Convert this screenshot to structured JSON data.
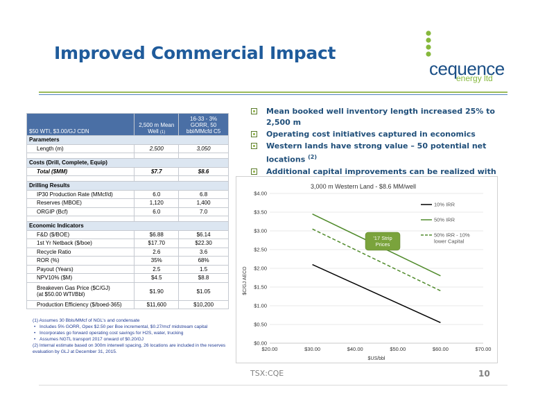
{
  "slide": {
    "title": "Improved Commercial Impact",
    "logo_text": "cequence",
    "logo_sub": "energy ltd",
    "ticker": "TSX:CQE",
    "page_number": "10"
  },
  "table": {
    "header": {
      "label": "$50 WTI, $3.00/GJ CDN",
      "col1": "2,500 m Mean Well",
      "col1_note": "(1)",
      "col2": "16-33 - 3% GORR, 50 bbl/MMcfd C5"
    },
    "sections": {
      "parameters": "Parameters",
      "costs": "Costs (Drill, Complete, Equip)",
      "drilling": "Drilling Results",
      "economic": "Economic Indicators"
    },
    "rows": {
      "length": [
        "Length (m)",
        "2,500",
        "3,050"
      ],
      "total": [
        "Total ($MM)",
        "$7.7",
        "$8.6"
      ],
      "ip30": [
        "IP30 Production Rate (MMcf/d)",
        "6.0",
        "6.8"
      ],
      "reserves": [
        "Reserves (MBOE)",
        "1,120",
        "1,400"
      ],
      "ogip": [
        "ORGIP (Bcf)",
        "6.0",
        "7.0"
      ],
      "fd": [
        "F&D ($/BOE)",
        "$6.88",
        "$6.14"
      ],
      "netback": [
        "1st Yr Netback ($/boe)",
        "$17.70",
        "$22.30"
      ],
      "recycle": [
        "Recycle Ratio",
        "2.6",
        "3.6"
      ],
      "ror": [
        "ROR (%)",
        "35%",
        "68%"
      ],
      "payout": [
        "Payout (Years)",
        "2.5",
        "1.5"
      ],
      "npv": [
        "NPV10% ($M)",
        "$4.5",
        "$8.8"
      ],
      "breakeven_l1": "Breakeven Gas Price ($C/GJ)",
      "breakeven_l2": "(at $50.00 WTI/Bbl)",
      "breakeven_v1": "$1.90",
      "breakeven_v2": "$1.05",
      "efficiency": [
        "Production Efficiency ($/boed-365)",
        "$11,600",
        "$10,200"
      ]
    }
  },
  "notes": {
    "n1": "(1)  Assumes 30 Bbls/MMcf of NGL's and condensate",
    "b1": "Includes 5% GORR, Opex $2.50 per Boe incremental, $0.27/mcf midstream capital",
    "b2": "Incorporates go forward operating cost savings for H2S, water, trucking",
    "b3": "Assumes NGTL transport 2017 onward of $0.20/GJ",
    "n2": "(2) Internal estimate based on 300m interwell spacing, 26 locations are included in the reserves evaluation by GLJ at December 31, 2015."
  },
  "bullets": {
    "b1": "Mean booked well inventory length increased 25% to 2,500 m",
    "b2": "Operating cost initiatives captured in economics",
    "b3": "Western lands have strong value – 50 potential net locations",
    "b3_sup": "(2)",
    "b4": "Additional capital improvements can be realized with larger program"
  },
  "chart_data": {
    "type": "line",
    "title": "3,000 m Western Land - $8.6 MM/well",
    "xlabel": "$US/bbl",
    "ylabel": "$C/GJ AECO",
    "xlim": [
      20,
      70
    ],
    "ylim": [
      0,
      4
    ],
    "xticks": [
      "$20.00",
      "$30.00",
      "$40.00",
      "$50.00",
      "$60.00",
      "$70.00"
    ],
    "yticks": [
      "$0.00",
      "$0.50",
      "$1.00",
      "$1.50",
      "$2.00",
      "$2.50",
      "$3.00",
      "$3.50",
      "$4.00"
    ],
    "legend_position": "top-right",
    "annotation": "'17 Strip Prices",
    "series": [
      {
        "name": "10% IRR",
        "color": "#000000",
        "dash": false,
        "x": [
          30,
          60
        ],
        "y": [
          2.1,
          0.55
        ]
      },
      {
        "name": "50% IRR",
        "color": "#4f8a2a",
        "dash": false,
        "x": [
          30,
          60
        ],
        "y": [
          3.45,
          1.8
        ]
      },
      {
        "name": "50% IRR - 10% lower Capital",
        "color": "#4f8a2a",
        "dash": true,
        "x": [
          30,
          60
        ],
        "y": [
          3.05,
          1.4
        ]
      }
    ]
  }
}
